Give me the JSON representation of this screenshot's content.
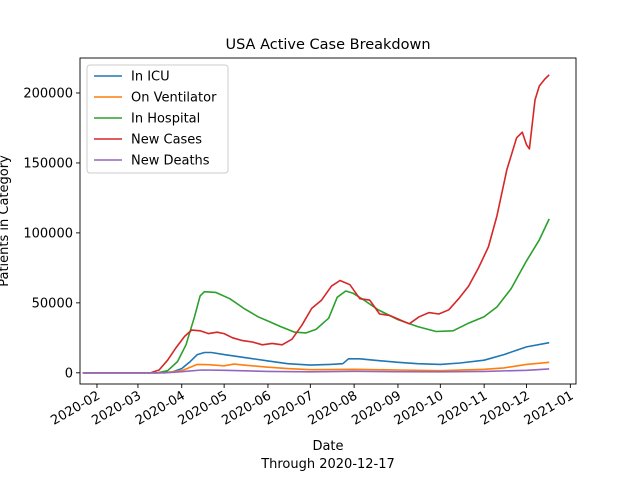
{
  "chart_data": {
    "type": "line",
    "title": "USA Active Case Breakdown",
    "xlabel": "Date",
    "xlabel_sub": "Through 2020-12-17",
    "ylabel": "Patients in Category",
    "xlim": [
      "2020-01-20",
      "2021-01-05"
    ],
    "ylim": [
      -8000,
      225000
    ],
    "xticks": [
      "2020-02",
      "2020-03",
      "2020-04",
      "2020-05",
      "2020-06",
      "2020-07",
      "2020-08",
      "2020-09",
      "2020-10",
      "2020-11",
      "2020-12",
      "2021-01"
    ],
    "yticks": [
      0,
      50000,
      100000,
      150000,
      200000
    ],
    "ytick_labels": [
      "0",
      "50000",
      "100000",
      "150000",
      "200000"
    ],
    "grid": false,
    "legend_position": "top-left",
    "series": [
      {
        "name": "In ICU",
        "color": "#1f77b4",
        "points": [
          [
            "2020-01-22",
            0
          ],
          [
            "2020-03-15",
            0
          ],
          [
            "2020-03-25",
            500
          ],
          [
            "2020-04-01",
            3000
          ],
          [
            "2020-04-07",
            8000
          ],
          [
            "2020-04-12",
            13000
          ],
          [
            "2020-04-17",
            14500
          ],
          [
            "2020-04-22",
            14500
          ],
          [
            "2020-05-01",
            13000
          ],
          [
            "2020-05-15",
            11000
          ],
          [
            "2020-06-01",
            8500
          ],
          [
            "2020-06-15",
            6500
          ],
          [
            "2020-07-01",
            5500
          ],
          [
            "2020-07-15",
            6000
          ],
          [
            "2020-07-24",
            6500
          ],
          [
            "2020-07-28",
            10000
          ],
          [
            "2020-08-05",
            10000
          ],
          [
            "2020-08-15",
            9000
          ],
          [
            "2020-09-01",
            7500
          ],
          [
            "2020-09-15",
            6500
          ],
          [
            "2020-10-01",
            6000
          ],
          [
            "2020-10-15",
            7000
          ],
          [
            "2020-11-01",
            9000
          ],
          [
            "2020-11-15",
            13000
          ],
          [
            "2020-12-01",
            18500
          ],
          [
            "2020-12-17",
            21500
          ]
        ]
      },
      {
        "name": "On Ventilator",
        "color": "#ff7f0e",
        "points": [
          [
            "2020-01-22",
            0
          ],
          [
            "2020-03-20",
            0
          ],
          [
            "2020-04-01",
            1500
          ],
          [
            "2020-04-12",
            6000
          ],
          [
            "2020-04-20",
            5800
          ],
          [
            "2020-05-01",
            5000
          ],
          [
            "2020-05-08",
            6200
          ],
          [
            "2020-05-15",
            5500
          ],
          [
            "2020-06-01",
            4000
          ],
          [
            "2020-06-15",
            3000
          ],
          [
            "2020-07-01",
            2200
          ],
          [
            "2020-08-01",
            2500
          ],
          [
            "2020-09-01",
            2000
          ],
          [
            "2020-10-01",
            1500
          ],
          [
            "2020-11-01",
            2500
          ],
          [
            "2020-11-15",
            3500
          ],
          [
            "2020-12-01",
            6000
          ],
          [
            "2020-12-17",
            7500
          ]
        ]
      },
      {
        "name": "In Hospital",
        "color": "#2ca02c",
        "points": [
          [
            "2020-01-22",
            0
          ],
          [
            "2020-03-15",
            0
          ],
          [
            "2020-03-22",
            1500
          ],
          [
            "2020-03-29",
            8000
          ],
          [
            "2020-04-04",
            20000
          ],
          [
            "2020-04-10",
            40000
          ],
          [
            "2020-04-14",
            55000
          ],
          [
            "2020-04-17",
            58000
          ],
          [
            "2020-04-25",
            57500
          ],
          [
            "2020-05-05",
            53000
          ],
          [
            "2020-05-15",
            46000
          ],
          [
            "2020-05-25",
            40000
          ],
          [
            "2020-06-01",
            37000
          ],
          [
            "2020-06-10",
            33000
          ],
          [
            "2020-06-20",
            29000
          ],
          [
            "2020-06-28",
            28500
          ],
          [
            "2020-07-05",
            31000
          ],
          [
            "2020-07-14",
            39000
          ],
          [
            "2020-07-20",
            54000
          ],
          [
            "2020-07-26",
            58500
          ],
          [
            "2020-07-31",
            57000
          ],
          [
            "2020-08-08",
            52000
          ],
          [
            "2020-08-18",
            45000
          ],
          [
            "2020-09-01",
            38000
          ],
          [
            "2020-09-15",
            33000
          ],
          [
            "2020-09-28",
            29500
          ],
          [
            "2020-10-10",
            30000
          ],
          [
            "2020-10-20",
            35000
          ],
          [
            "2020-11-01",
            40000
          ],
          [
            "2020-11-10",
            47000
          ],
          [
            "2020-11-20",
            60000
          ],
          [
            "2020-12-01",
            80000
          ],
          [
            "2020-12-10",
            95000
          ],
          [
            "2020-12-17",
            110000
          ]
        ]
      },
      {
        "name": "New Cases",
        "color": "#d62728",
        "points": [
          [
            "2020-01-22",
            0
          ],
          [
            "2020-03-10",
            0
          ],
          [
            "2020-03-16",
            2000
          ],
          [
            "2020-03-22",
            9000
          ],
          [
            "2020-03-28",
            18000
          ],
          [
            "2020-04-03",
            26000
          ],
          [
            "2020-04-08",
            30500
          ],
          [
            "2020-04-14",
            30000
          ],
          [
            "2020-04-20",
            28000
          ],
          [
            "2020-04-26",
            29000
          ],
          [
            "2020-05-01",
            28000
          ],
          [
            "2020-05-07",
            25000
          ],
          [
            "2020-05-14",
            23000
          ],
          [
            "2020-05-21",
            22000
          ],
          [
            "2020-05-28",
            20000
          ],
          [
            "2020-06-04",
            21000
          ],
          [
            "2020-06-11",
            20000
          ],
          [
            "2020-06-18",
            24000
          ],
          [
            "2020-06-25",
            34000
          ],
          [
            "2020-07-02",
            46000
          ],
          [
            "2020-07-09",
            52000
          ],
          [
            "2020-07-16",
            62000
          ],
          [
            "2020-07-22",
            66000
          ],
          [
            "2020-07-29",
            63000
          ],
          [
            "2020-08-05",
            53000
          ],
          [
            "2020-08-12",
            52000
          ],
          [
            "2020-08-19",
            42000
          ],
          [
            "2020-08-26",
            41000
          ],
          [
            "2020-09-02",
            38000
          ],
          [
            "2020-09-09",
            35000
          ],
          [
            "2020-09-16",
            40000
          ],
          [
            "2020-09-23",
            43000
          ],
          [
            "2020-09-30",
            42000
          ],
          [
            "2020-10-07",
            45000
          ],
          [
            "2020-10-14",
            53000
          ],
          [
            "2020-10-21",
            62000
          ],
          [
            "2020-10-28",
            75000
          ],
          [
            "2020-11-04",
            90000
          ],
          [
            "2020-11-10",
            112000
          ],
          [
            "2020-11-17",
            145000
          ],
          [
            "2020-11-24",
            168000
          ],
          [
            "2020-11-28",
            172000
          ],
          [
            "2020-12-01",
            163000
          ],
          [
            "2020-12-03",
            160000
          ],
          [
            "2020-12-07",
            195000
          ],
          [
            "2020-12-10",
            205000
          ],
          [
            "2020-12-14",
            210000
          ],
          [
            "2020-12-17",
            213000
          ]
        ]
      },
      {
        "name": "New Deaths",
        "color": "#9467bd",
        "points": [
          [
            "2020-01-22",
            0
          ],
          [
            "2020-03-20",
            0
          ],
          [
            "2020-04-01",
            800
          ],
          [
            "2020-04-15",
            2000
          ],
          [
            "2020-05-01",
            1800
          ],
          [
            "2020-06-01",
            1000
          ],
          [
            "2020-07-01",
            700
          ],
          [
            "2020-08-01",
            1100
          ],
          [
            "2020-09-01",
            800
          ],
          [
            "2020-10-01",
            700
          ],
          [
            "2020-11-01",
            1000
          ],
          [
            "2020-12-01",
            1800
          ],
          [
            "2020-12-17",
            2800
          ]
        ]
      }
    ]
  }
}
